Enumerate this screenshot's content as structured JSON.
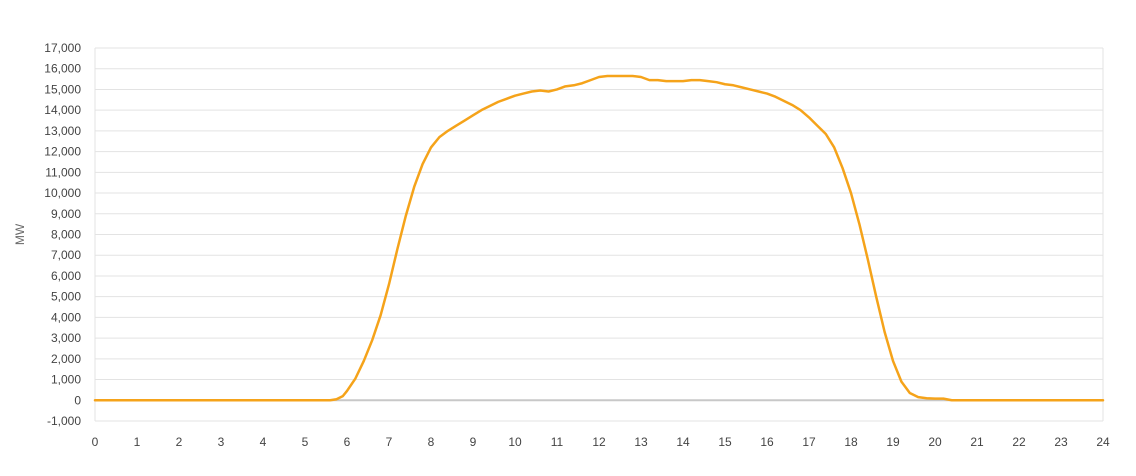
{
  "chart_data": {
    "type": "line",
    "ylabel": "MW",
    "xlabel": "",
    "xlim": [
      0,
      24
    ],
    "ylim": [
      -1000,
      17000
    ],
    "x_ticks": [
      0,
      1,
      2,
      3,
      4,
      5,
      6,
      7,
      8,
      9,
      10,
      11,
      12,
      13,
      14,
      15,
      16,
      17,
      18,
      19,
      20,
      21,
      22,
      23,
      24
    ],
    "x_tick_labels": [
      "0",
      "1",
      "2",
      "3",
      "4",
      "5",
      "6",
      "7",
      "8",
      "9",
      "10",
      "11",
      "12",
      "13",
      "14",
      "15",
      "16",
      "17",
      "18",
      "19",
      "20",
      "21",
      "22",
      "23",
      "24"
    ],
    "y_ticks": [
      -1000,
      0,
      1000,
      2000,
      3000,
      4000,
      5000,
      6000,
      7000,
      8000,
      9000,
      10000,
      11000,
      12000,
      13000,
      14000,
      15000,
      16000,
      17000
    ],
    "y_tick_labels": [
      "-1,000",
      "0",
      "1,000",
      "2,000",
      "3,000",
      "4,000",
      "5,000",
      "6,000",
      "7,000",
      "8,000",
      "9,000",
      "10,000",
      "11,000",
      "12,000",
      "13,000",
      "14,000",
      "15,000",
      "16,000",
      "17,000"
    ],
    "grid": true,
    "legend": "none",
    "colors": {
      "series": "#f5a31a",
      "grid": "#e3e3e3",
      "zero_line": "#c8c8c8"
    },
    "series": [
      {
        "x": [
          0,
          5.6,
          5.75,
          5.9,
          6.0,
          6.2,
          6.4,
          6.6,
          6.8,
          7.0,
          7.2,
          7.4,
          7.6,
          7.8,
          8.0,
          8.2,
          8.4,
          8.6,
          8.8,
          9.0,
          9.2,
          9.4,
          9.6,
          9.8,
          10.0,
          10.2,
          10.4,
          10.6,
          10.8,
          11.0,
          11.2,
          11.4,
          11.6,
          11.8,
          12.0,
          12.2,
          12.4,
          12.6,
          12.8,
          13.0,
          13.2,
          13.4,
          13.6,
          13.8,
          14.0,
          14.2,
          14.4,
          14.6,
          14.8,
          15.0,
          15.2,
          15.4,
          15.6,
          15.8,
          16.0,
          16.2,
          16.4,
          16.6,
          16.8,
          17.0,
          17.2,
          17.4,
          17.6,
          17.8,
          18.0,
          18.2,
          18.4,
          18.6,
          18.8,
          19.0,
          19.2,
          19.4,
          19.6,
          19.8,
          20.0,
          20.2,
          20.4,
          20.6,
          20.8,
          21.0,
          21.05,
          21.2,
          22,
          23,
          24
        ],
        "values": [
          0,
          0,
          50,
          200,
          450,
          1050,
          1900,
          2900,
          4100,
          5600,
          7300,
          8900,
          10300,
          11400,
          12200,
          12700,
          13000,
          13250,
          13500,
          13750,
          14000,
          14200,
          14400,
          14550,
          14700,
          14800,
          14900,
          14950,
          14900,
          15000,
          15150,
          15200,
          15300,
          15450,
          15600,
          15650,
          15650,
          15650,
          15650,
          15600,
          15450,
          15450,
          15400,
          15400,
          15400,
          15450,
          15450,
          15400,
          15350,
          15250,
          15200,
          15100,
          15000,
          14900,
          14800,
          14650,
          14450,
          14250,
          14000,
          13650,
          13250,
          12850,
          12200,
          11200,
          10000,
          8500,
          6800,
          5000,
          3300,
          1900,
          900,
          350,
          150,
          100,
          80,
          80,
          0,
          0,
          0,
          0,
          0,
          0,
          0,
          0,
          0
        ]
      }
    ]
  }
}
